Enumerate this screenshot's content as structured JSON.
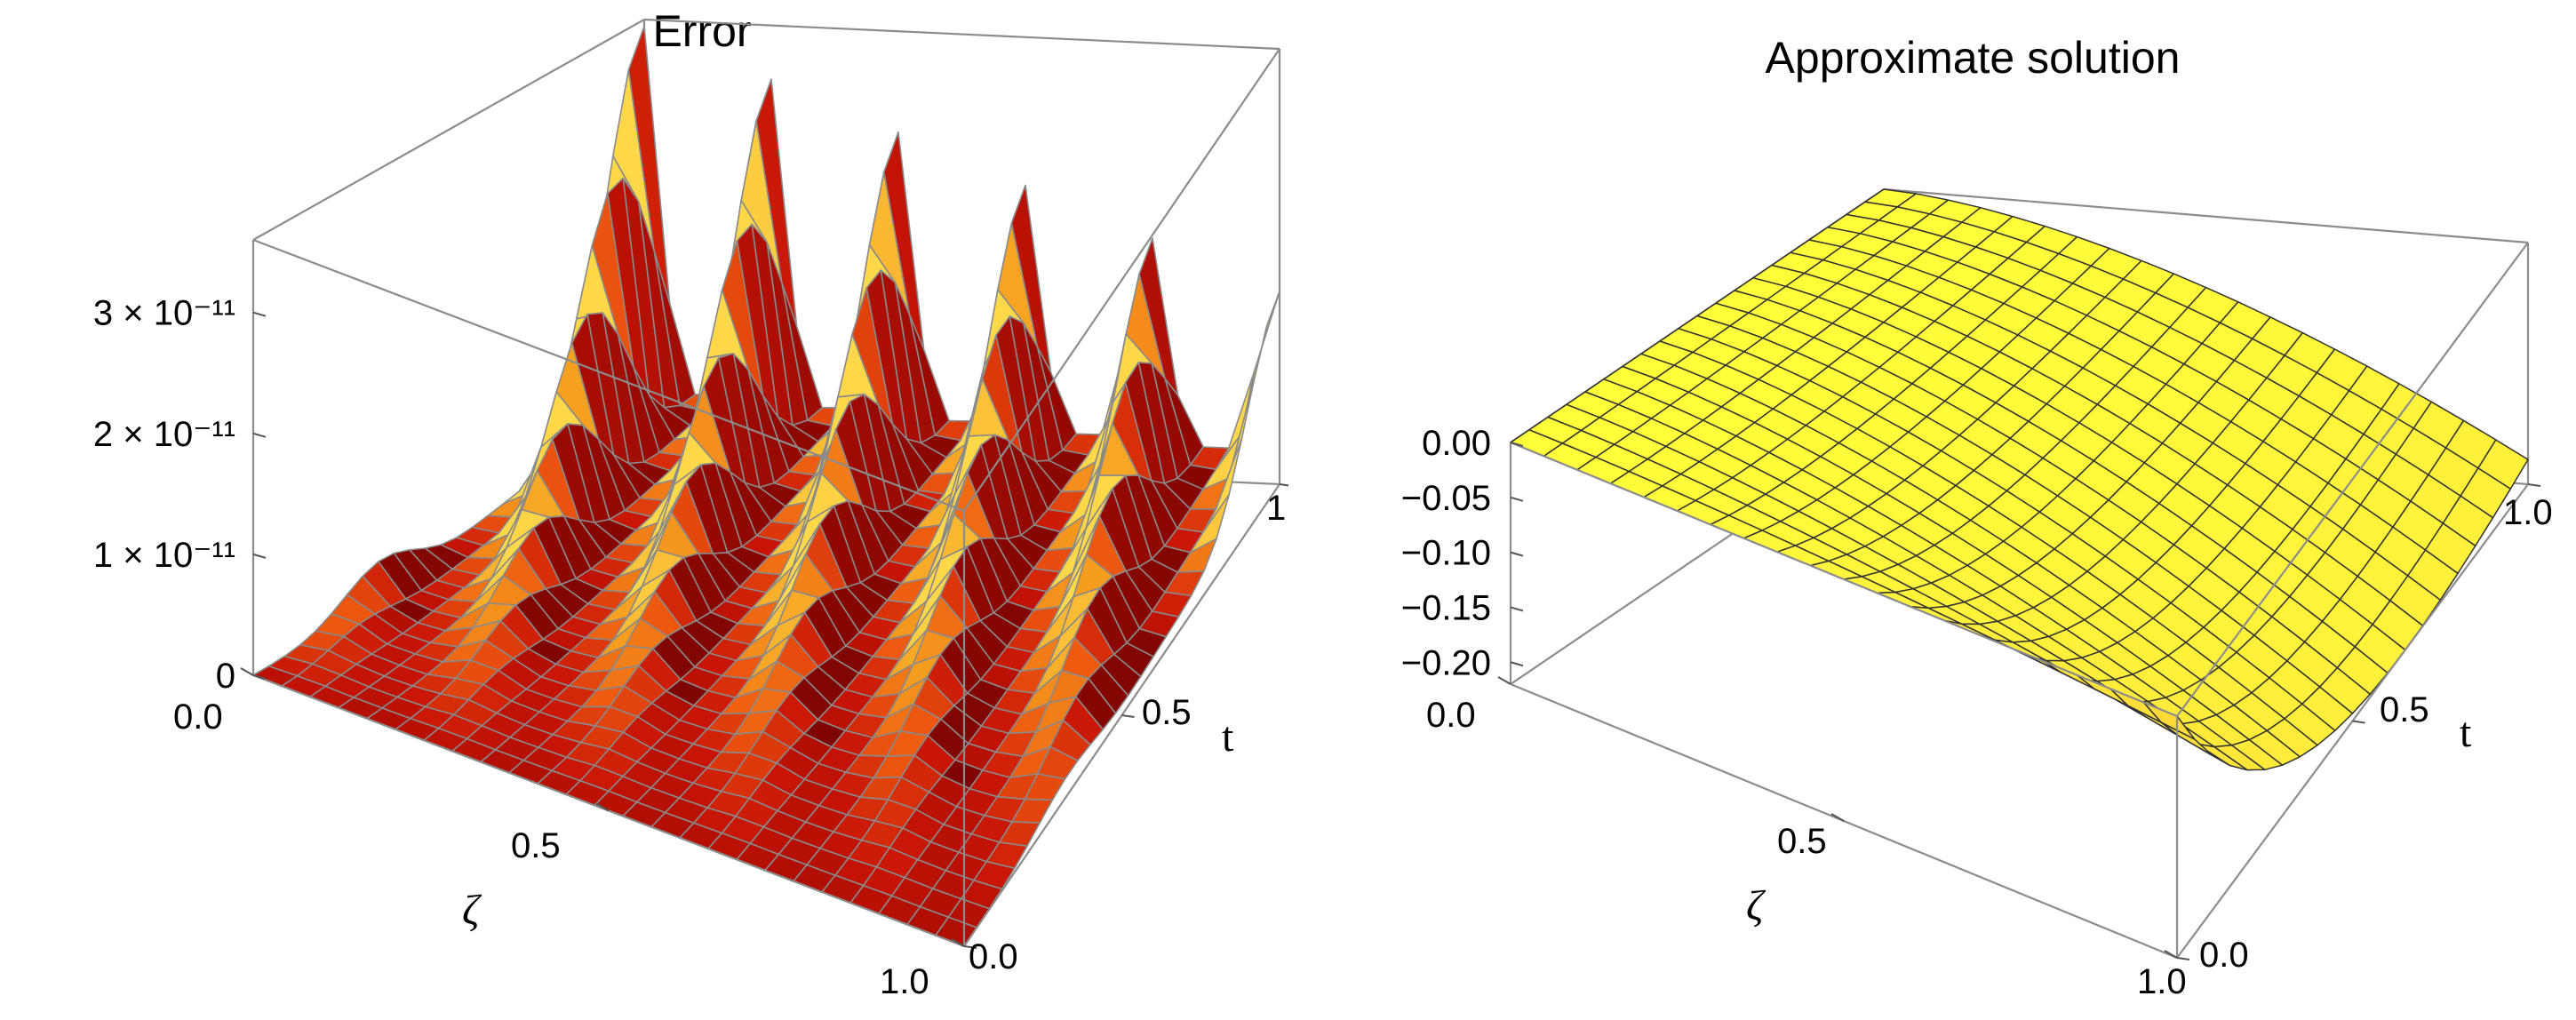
{
  "chart_data": [
    {
      "type": "surface3d",
      "title": "Error",
      "xlabel": "ζ",
      "ylabel": "t",
      "zlabel": "",
      "xlim": [
        0,
        1
      ],
      "ylim": [
        0,
        1
      ],
      "zlim": [
        0,
        3.6e-11
      ],
      "x_ticks": [
        "0.0",
        "0.5",
        "1.0"
      ],
      "y_ticks": [
        "0.0",
        "0.5",
        "1.0"
      ],
      "z_ticks": [
        {
          "value": 0,
          "label": "0"
        },
        {
          "value": 1e-11,
          "label": "1 × 10⁻¹¹"
        },
        {
          "value": 2e-11,
          "label": "2 × 10⁻¹¹"
        },
        {
          "value": 3e-11,
          "label": "3 × 10⁻¹¹"
        }
      ],
      "mesh_lines": 25,
      "surface": {
        "description": "ridged error surface, near zero at t = 0 and rising with t",
        "ridge_count": 5,
        "peak_value": 3.6e-11,
        "plateau_value": 1.2e-11
      },
      "colormap": [
        "#6a0000",
        "#c81405",
        "#ee5a10",
        "#f6a020",
        "#ffd84a"
      ],
      "mesh_color": "#8a8a8a",
      "box": true
    },
    {
      "type": "surface3d",
      "title": "Approximate  solution",
      "xlabel": "ζ",
      "ylabel": "t",
      "zlabel": "",
      "xlim": [
        0,
        1
      ],
      "ylim": [
        0,
        1
      ],
      "zlim": [
        -0.22,
        0
      ],
      "x_ticks": [
        "0.0",
        "0.5",
        "1.0"
      ],
      "y_ticks": [
        "0.0",
        "0.5",
        "1.0"
      ],
      "z_ticks": [
        {
          "value": 0,
          "label": "0.00"
        },
        {
          "value": -0.05,
          "label": "−0.05"
        },
        {
          "value": -0.1,
          "label": "−0.10"
        },
        {
          "value": -0.15,
          "label": "−0.15"
        },
        {
          "value": -0.2,
          "label": "−0.20"
        }
      ],
      "mesh_lines": 20,
      "surface": {
        "description": "saddle-shaped surface, 0 along ζ = 0 and t = 0, minimum near -0.22 at ζ = 1, t ≈ 0.65",
        "min_value": -0.22,
        "min_at": {
          "zeta": 1,
          "t": 0.65
        }
      },
      "colormap": [
        "#ffff3a",
        "#ffe93a",
        "#fcc030",
        "#f39020",
        "#e06010"
      ],
      "mesh_color": "#333333",
      "box": true
    }
  ]
}
